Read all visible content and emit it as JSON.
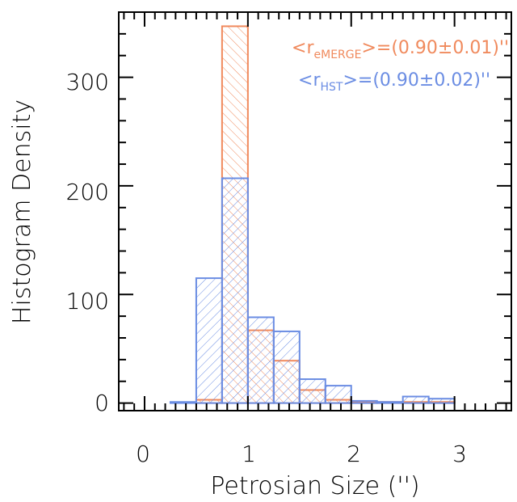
{
  "chart_data": {
    "type": "bar",
    "xlabel": "Petrosian Size ('')",
    "ylabel": "Histogram Density",
    "xlim": [
      -0.25,
      3.55
    ],
    "ylim": [
      -7,
      360
    ],
    "x_ticks": [
      "0",
      "1",
      "2",
      "3"
    ],
    "y_ticks": [
      "0",
      "100",
      "200",
      "300"
    ],
    "bin_width": 0.25,
    "bins_left": [
      0.0,
      0.25,
      0.5,
      0.75,
      1.0,
      1.25,
      1.5,
      1.75,
      2.0,
      2.25,
      2.5,
      2.75,
      3.0
    ],
    "series": [
      {
        "label_text": "eMERGE",
        "values": [
          0,
          0,
          3,
          347,
          67,
          39,
          12,
          3,
          1,
          1,
          1,
          1,
          0
        ],
        "color": "#f08a5d"
      },
      {
        "label_text": "HST",
        "values": [
          0,
          1,
          115,
          207,
          79,
          66,
          22,
          16,
          2,
          1,
          6,
          4,
          0
        ],
        "color": "#6b8de3"
      }
    ],
    "annotations": [
      {
        "prefix": "<r",
        "sub": "eMERGE",
        "suffix": ">=(0.90±0.01)''",
        "color": "#f08a5d"
      },
      {
        "prefix": "<r",
        "sub": "HST",
        "suffix": ">=(0.90±0.02)''",
        "color": "#6b8de3"
      }
    ]
  }
}
